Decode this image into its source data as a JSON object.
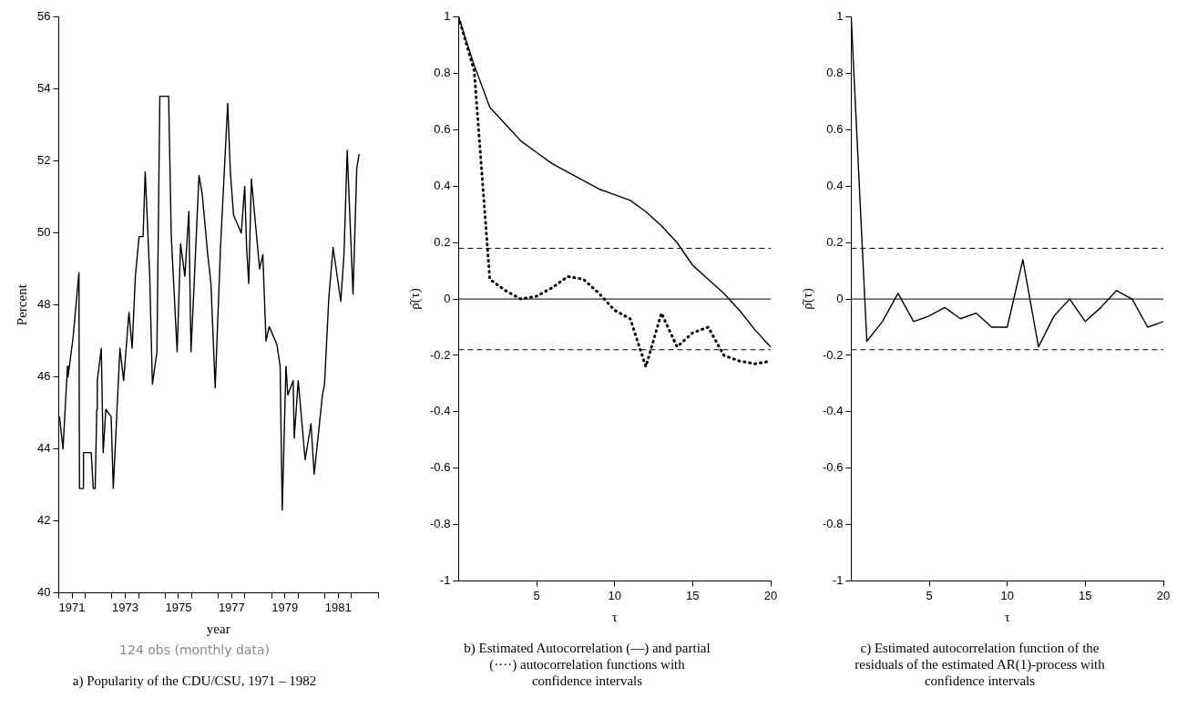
{
  "chart_data": [
    {
      "type": "line",
      "title": "a) Popularity of the CDU/CSU, 1971 – 1982",
      "annotations": [
        "124 obs (monthly data)"
      ],
      "xlabel": "year",
      "ylabel": "Percent",
      "x": [
        1971.03,
        1971.16,
        1971.33,
        1971.35,
        1971.54,
        1971.76,
        1971.78,
        1971.92,
        1971.93,
        1972.22,
        1972.3,
        1972.37,
        1972.43,
        1972.45,
        1972.6,
        1972.67,
        1972.77,
        1972.97,
        1973.05,
        1973.3,
        1973.44,
        1973.64,
        1973.76,
        1973.88,
        1974.02,
        1974.17,
        1974.25,
        1974.42,
        1974.52,
        1974.69,
        1974.8,
        1975.13,
        1975.23,
        1975.45,
        1975.58,
        1975.74,
        1975.89,
        1975.97,
        1976.09,
        1976.27,
        1976.39,
        1976.6,
        1976.72,
        1976.88,
        1977.08,
        1977.35,
        1977.45,
        1977.57,
        1977.86,
        1977.99,
        1978.06,
        1978.14,
        1978.24,
        1978.55,
        1978.67,
        1978.79,
        1978.91,
        1979.2,
        1979.32,
        1979.4,
        1979.54,
        1979.61,
        1979.81,
        1979.85,
        1980.0,
        1980.26,
        1980.48,
        1980.6,
        1980.91,
        1980.99,
        1981.15,
        1981.31,
        1981.6,
        1981.72,
        1981.84,
        1982.06,
        1982.2,
        1982.29
      ],
      "series": [
        {
          "color": "#000000",
          "line_style": "solid",
          "values": [
            44.9,
            44.0,
            46.3,
            46.0,
            47.1,
            48.9,
            42.9,
            42.9,
            43.9,
            43.9,
            42.9,
            42.9,
            45.1,
            45.9,
            46.8,
            43.9,
            45.1,
            44.9,
            42.9,
            46.8,
            45.9,
            47.8,
            46.8,
            48.8,
            49.9,
            49.9,
            51.7,
            48.8,
            45.8,
            46.7,
            53.8,
            53.8,
            49.9,
            46.7,
            49.7,
            48.8,
            50.6,
            46.7,
            48.6,
            51.6,
            51.1,
            49.4,
            48.6,
            45.7,
            49.6,
            53.6,
            51.7,
            50.5,
            50.0,
            51.3,
            49.6,
            48.6,
            51.5,
            49.0,
            49.4,
            47.0,
            47.4,
            46.9,
            46.3,
            42.3,
            46.3,
            45.5,
            45.9,
            44.3,
            45.9,
            43.7,
            44.7,
            43.3,
            45.5,
            45.8,
            48.2,
            49.6,
            48.1,
            49.4,
            52.3,
            48.3,
            51.8,
            52.2
          ]
        }
      ],
      "xlim": [
        1971,
        1983
      ],
      "xticks": [
        {
          "value": 1971,
          "label": null
        },
        {
          "value": 1971.5,
          "label": "1971"
        },
        {
          "value": 1972,
          "label": null
        },
        {
          "value": 1973,
          "label": null
        },
        {
          "value": 1973.5,
          "label": "1973"
        },
        {
          "value": 1974,
          "label": null
        },
        {
          "value": 1975,
          "label": null
        },
        {
          "value": 1975.5,
          "label": "1975"
        },
        {
          "value": 1976,
          "label": null
        },
        {
          "value": 1977,
          "label": null
        },
        {
          "value": 1977.5,
          "label": "1977"
        },
        {
          "value": 1978,
          "label": null
        },
        {
          "value": 1979,
          "label": null
        },
        {
          "value": 1979.5,
          "label": "1979"
        },
        {
          "value": 1980,
          "label": null
        },
        {
          "value": 1981,
          "label": null
        },
        {
          "value": 1981.5,
          "label": "1981"
        },
        {
          "value": 1982,
          "label": null
        },
        {
          "value": 1983,
          "label": null
        }
      ],
      "ylim": [
        40,
        56
      ],
      "yticks": [
        40,
        42,
        44,
        46,
        48,
        50,
        52,
        54,
        56
      ],
      "grid": false,
      "legend": false,
      "marker": "none"
    },
    {
      "type": "line",
      "title": "b) Estimated Autocorrelation (—) and partial (····) autocorrelation functions with confidence intervals",
      "xlabel": "τ",
      "ylabel": "ρ̂(τ)",
      "x": [
        0,
        1,
        2,
        3,
        4,
        5,
        6,
        7,
        8,
        9,
        10,
        11,
        12,
        13,
        14,
        15,
        16,
        17,
        18,
        19,
        20
      ],
      "series": [
        {
          "color": "#000000",
          "line_style": "solid",
          "values": [
            1,
            0.83,
            0.68,
            0.62,
            0.56,
            0.52,
            0.48,
            0.45,
            0.42,
            0.39,
            0.37,
            0.35,
            0.31,
            0.26,
            0.2,
            0.12,
            0.07,
            0.02,
            -0.04,
            -0.11,
            -0.17
          ]
        },
        {
          "color": "#000000",
          "line_style": "dotted",
          "values": [
            1,
            0.81,
            0.07,
            0.03,
            0,
            0.01,
            0.04,
            0.08,
            0.07,
            0.02,
            -0.04,
            -0.07,
            -0.24,
            -0.05,
            -0.17,
            -0.12,
            -0.1,
            -0.2,
            -0.22,
            -0.23,
            -0.22
          ]
        }
      ],
      "xlim": [
        0,
        20
      ],
      "xticks": [
        5,
        10,
        15,
        20
      ],
      "ylim": [
        -1,
        1
      ],
      "yticks": [
        -1,
        -0.8,
        -0.6,
        -0.4,
        -0.2,
        0,
        0.2,
        0.4,
        0.6,
        0.8,
        1
      ],
      "ref_lines": [
        {
          "axis": "y",
          "value": 0,
          "line_style": "solid",
          "color": "#000000"
        },
        {
          "axis": "y",
          "value": 0.18,
          "line_style": "dashed",
          "color": "#000000"
        },
        {
          "axis": "y",
          "value": -0.18,
          "line_style": "dashed",
          "color": "#000000"
        }
      ],
      "grid": false,
      "legend": false,
      "marker": "none"
    },
    {
      "type": "line",
      "title": "c) Estimated autocorrelation function of the residuals of the estimated AR(1)-process with confidence intervals",
      "xlabel": "τ",
      "ylabel": "ρ̂(τ)",
      "x": [
        0,
        1,
        2,
        3,
        4,
        5,
        6,
        7,
        8,
        9,
        10,
        11,
        12,
        13,
        14,
        15,
        16,
        17,
        18,
        19,
        20
      ],
      "series": [
        {
          "color": "#000000",
          "line_style": "solid",
          "values": [
            1,
            -0.15,
            -0.08,
            0.02,
            -0.08,
            -0.06,
            -0.03,
            -0.07,
            -0.05,
            -0.1,
            -0.1,
            0.14,
            -0.17,
            -0.06,
            0,
            -0.08,
            -0.03,
            0.03,
            0,
            -0.1,
            -0.08
          ]
        }
      ],
      "xlim": [
        0,
        20
      ],
      "xticks": [
        5,
        10,
        15,
        20
      ],
      "ylim": [
        -1,
        1
      ],
      "yticks": [
        -1,
        -0.8,
        -0.6,
        -0.4,
        -0.2,
        0,
        0.2,
        0.4,
        0.6,
        0.8,
        1
      ],
      "ref_lines": [
        {
          "axis": "y",
          "value": 0,
          "line_style": "solid",
          "color": "#000000"
        },
        {
          "axis": "y",
          "value": 0.18,
          "line_style": "dashed",
          "color": "#000000"
        },
        {
          "axis": "y",
          "value": -0.18,
          "line_style": "dashed",
          "color": "#000000"
        }
      ],
      "grid": false,
      "legend": false,
      "marker": "none"
    }
  ]
}
